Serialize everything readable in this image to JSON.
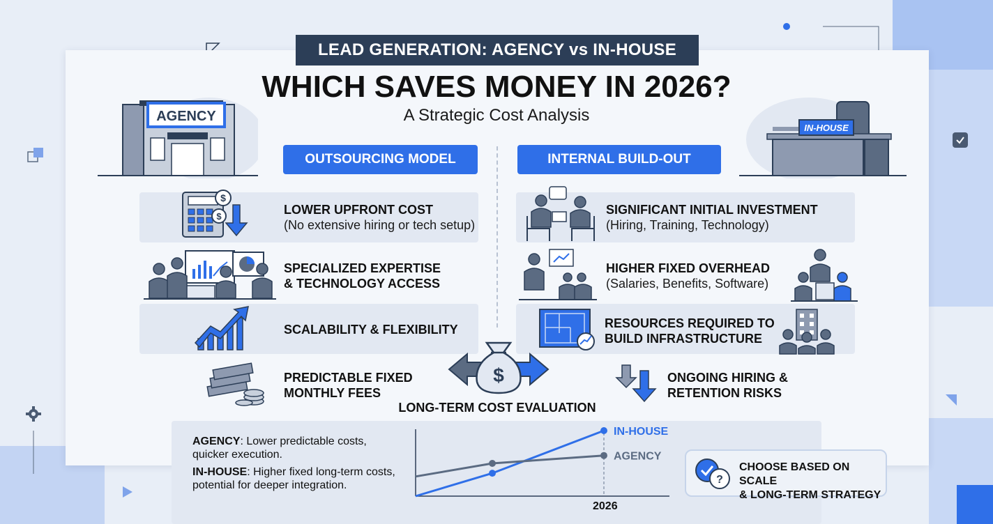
{
  "header": {
    "tag": "LEAD GENERATION: AGENCY vs IN-HOUSE",
    "title": "WHICH SAVES MONEY IN 2026?",
    "subtitle": "A Strategic Cost Analysis"
  },
  "agency": {
    "sign": "AGENCY",
    "pill": "OUTSOURCING MODEL",
    "rows": [
      {
        "title": "LOWER UPFRONT COST",
        "sub": "(No extensive hiring or tech setup)",
        "icon": "calculator-icon"
      },
      {
        "title": "SPECIALIZED EXPERTISE",
        "title2": "& TECHNOLOGY ACCESS",
        "icon": "team-presentation-icon"
      },
      {
        "title": "SCALABILITY & FLEXIBILITY",
        "icon": "growth-chart-icon"
      },
      {
        "title": "PREDICTABLE FIXED",
        "title2": "MONTHLY FEES",
        "icon": "cash-stack-icon"
      }
    ]
  },
  "inhouse": {
    "sign": "IN-HOUSE",
    "pill": "INTERNAL BUILD-OUT",
    "rows": [
      {
        "title": "SIGNIFICANT INITIAL INVESTMENT",
        "sub": "(Hiring, Training, Technology)",
        "icon": "interview-icon"
      },
      {
        "title": "HIGHER FIXED OVERHEAD",
        "sub": "(Salaries, Benefits, Software)",
        "icon": "meeting-icon"
      },
      {
        "title": "RESOURCES REQUIRED TO",
        "title2": "BUILD INFRASTRUCTURE",
        "icon": "blueprint-icon"
      },
      {
        "title": "ONGOING HIRING &",
        "title2": "RETENTION RISKS",
        "icon": "down-arrows-icon"
      }
    ]
  },
  "evaluation": {
    "label": "LONG-TERM COST EVALUATION",
    "agency_label": "AGENCY",
    "agency_text": ": Lower predictable costs, quicker execution.",
    "inhouse_label": "IN-HOUSE",
    "inhouse_text": ": Higher fixed long-term costs, potential for deeper integration.",
    "choose": "CHOOSE BASED ON SCALE & LONG-TERM STRATEGY",
    "choose_line1": "CHOOSE BASED ON SCALE",
    "choose_line2": "& LONG-TERM STRATEGY"
  },
  "chart_data": {
    "type": "line",
    "x_marker": "2026",
    "series": [
      {
        "name": "IN-HOUSE",
        "color": "#2f6fe8",
        "values": [
          0,
          0.35,
          1.0
        ]
      },
      {
        "name": "AGENCY",
        "color": "#5b6b82",
        "values": [
          0.3,
          0.5,
          0.62
        ]
      }
    ]
  },
  "colors": {
    "accent": "#2f6fe8",
    "dark": "#2c3e57",
    "row": "#e2e8f2"
  }
}
